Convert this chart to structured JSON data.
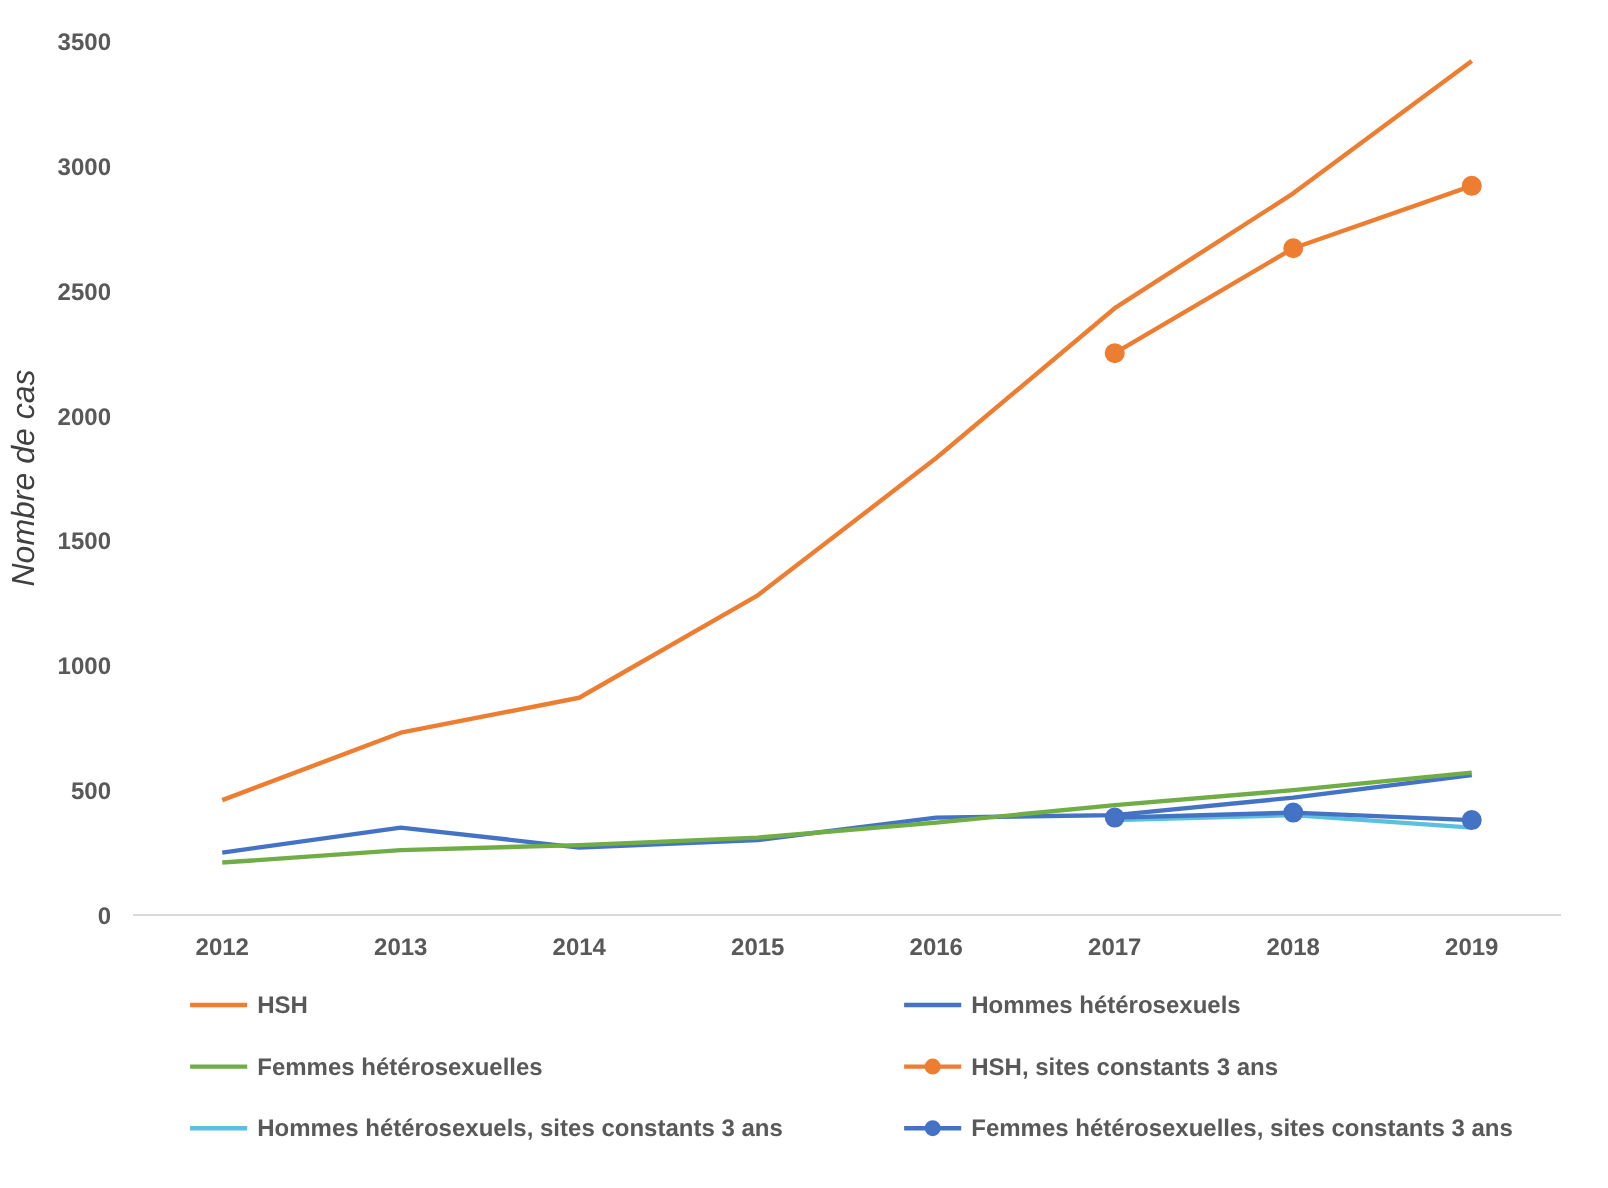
{
  "chart_data": {
    "type": "line",
    "ylabel": "Nombre de cas",
    "categories": [
      "2012",
      "2013",
      "2014",
      "2015",
      "2016",
      "2017",
      "2018",
      "2019"
    ],
    "ylim": [
      0,
      3500
    ],
    "yticks": [
      0,
      500,
      1000,
      1500,
      2000,
      2500,
      3000,
      3500
    ],
    "grid": false,
    "legend": "bottom",
    "series": [
      {
        "name": "HSH",
        "color": "#ed7d31",
        "values": [
          460,
          730,
          870,
          1280,
          1830,
          2430,
          2890,
          3420
        ]
      },
      {
        "name": "Hommes hétérosexuels",
        "color": "#4472c4",
        "values": [
          250,
          350,
          270,
          300,
          390,
          400,
          470,
          560
        ]
      },
      {
        "name": "Femmes hétérosexuelles",
        "color": "#70ad47",
        "values": [
          210,
          260,
          280,
          310,
          370,
          440,
          500,
          570
        ]
      },
      {
        "name": "HSH, sites constants 3 ans",
        "color": "#ed7d31",
        "marker": "circle",
        "values": [
          null,
          null,
          null,
          null,
          null,
          2250,
          2670,
          2920
        ]
      },
      {
        "name": "Hommes hétérosexuels, sites constants 3 ans",
        "color": "#5bc0de",
        "values": [
          null,
          null,
          null,
          null,
          null,
          380,
          400,
          350
        ]
      },
      {
        "name": "Femmes hétérosexuelles, sites constants 3 ans",
        "color": "#4472c4",
        "marker": "circle",
        "values": [
          null,
          null,
          null,
          null,
          null,
          390,
          410,
          380
        ]
      }
    ]
  }
}
